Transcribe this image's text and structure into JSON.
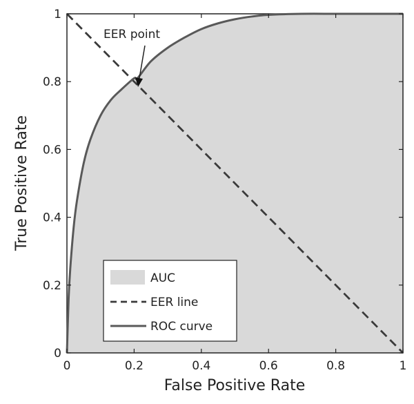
{
  "chart_data": {
    "type": "area",
    "xlabel": "False Positive Rate",
    "ylabel": "True Positive Rate",
    "xlim": [
      0,
      1
    ],
    "ylim": [
      0,
      1
    ],
    "x_ticks": [
      "0",
      "0.2",
      "0.4",
      "0.6",
      "0.8",
      "1"
    ],
    "y_ticks": [
      "0",
      "0.2",
      "0.4",
      "0.6",
      "0.8",
      "1"
    ],
    "grid": false,
    "legend_position": "bottom-left",
    "series": [
      {
        "name": "ROC curve",
        "style": "solid",
        "x": [
          0,
          0.005,
          0.01,
          0.02,
          0.03,
          0.05,
          0.07,
          0.1,
          0.13,
          0.16,
          0.2,
          0.21,
          0.25,
          0.3,
          0.35,
          0.4,
          0.45,
          0.5,
          0.55,
          0.6,
          0.7,
          0.8,
          0.9,
          1.0
        ],
        "y": [
          0,
          0.16,
          0.25,
          0.37,
          0.45,
          0.56,
          0.63,
          0.7,
          0.745,
          0.775,
          0.81,
          0.79,
          0.86,
          0.9,
          0.93,
          0.955,
          0.972,
          0.984,
          0.992,
          0.997,
          1.0,
          1.0,
          1.0,
          1.0
        ]
      },
      {
        "name": "EER line",
        "style": "dashed",
        "x": [
          0,
          1
        ],
        "y": [
          1,
          0
        ]
      }
    ],
    "area": {
      "name": "AUC",
      "under_series": "ROC curve"
    },
    "legend": [
      "AUC",
      "EER line",
      "ROC curve"
    ],
    "annotations": [
      {
        "text": "EER point",
        "x": 0.215,
        "y": 0.785
      }
    ]
  },
  "colors": {
    "area_fill": "#d9d9d9",
    "roc_line": "#595959",
    "eer_line": "#3a3a3a",
    "axis": "#222222"
  }
}
